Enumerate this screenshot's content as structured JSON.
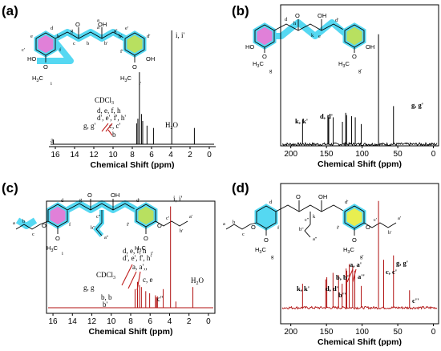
{
  "colors": {
    "highlight_cyan": "#55d8f2",
    "ring_magenta": "#e080d8",
    "ring_green": "#b8e060",
    "arrow_red": "#c0201f",
    "spectrum_a": "#000000",
    "spectrum_b": "#000000",
    "spectrum_c": "#b01010",
    "spectrum_d": "#b01010",
    "axis": "#000000"
  },
  "chart_data": [
    {
      "id": "a",
      "panel_label": "(a)",
      "type": "line",
      "xlabel": "Chemical Shift (ppm)",
      "x_ticks": [
        "16",
        "14",
        "12",
        "10",
        "8",
        "6",
        "4",
        "2",
        "0"
      ],
      "xlim": [
        16.5,
        -0.5
      ],
      "grid": false,
      "peaks": [
        {
          "ppm": 16.2,
          "height": 0.04
        },
        {
          "ppm": 7.55,
          "height": 0.18
        },
        {
          "ppm": 7.42,
          "height": 0.22
        },
        {
          "ppm": 7.26,
          "height": 0.62
        },
        {
          "ppm": 7.05,
          "height": 0.26
        },
        {
          "ppm": 6.92,
          "height": 0.2
        },
        {
          "ppm": 6.47,
          "height": 0.16
        },
        {
          "ppm": 5.8,
          "height": 0.14
        },
        {
          "ppm": 3.9,
          "height": 0.98
        },
        {
          "ppm": 1.55,
          "height": 0.14
        }
      ],
      "annotations": {
        "ii": "i, i'",
        "cdcl3": "CDCl",
        "cdcl3_sub": "3",
        "defh1": "d, e, f, h",
        "defh2": "d', e', f', h'",
        "cc": "c, c'",
        "gg": "g, g'",
        "b": "b",
        "h2o": "H",
        "h2o_sub": "2",
        "h2o_o": "O",
        "a": "a"
      }
    },
    {
      "id": "b",
      "panel_label": "(b)",
      "type": "line",
      "xlabel": "Chemical Shift (ppm)",
      "x_ticks": [
        "200",
        "150",
        "100",
        "50",
        "0"
      ],
      "xlim": [
        212,
        -5
      ],
      "grid": false,
      "peaks": [
        {
          "ppm": 183.5,
          "height": 0.22
        },
        {
          "ppm": 148.0,
          "height": 0.26
        },
        {
          "ppm": 146.8,
          "height": 0.24
        },
        {
          "ppm": 140.5,
          "height": 0.24
        },
        {
          "ppm": 127.6,
          "height": 0.2
        },
        {
          "ppm": 123.0,
          "height": 0.28
        },
        {
          "ppm": 121.8,
          "height": 0.26
        },
        {
          "ppm": 114.8,
          "height": 0.25
        },
        {
          "ppm": 109.6,
          "height": 0.24
        },
        {
          "ppm": 101.2,
          "height": 0.18
        },
        {
          "ppm": 77.0,
          "height": 0.98
        },
        {
          "ppm": 56.0,
          "height": 0.34
        }
      ],
      "annotations": {
        "kk": "k, k'",
        "dd": "d, d'",
        "gg": "g, g'"
      }
    },
    {
      "id": "c",
      "panel_label": "(c)",
      "type": "line",
      "xlabel": "Chemical Shift (ppm)",
      "x_ticks": [
        "16",
        "14",
        "12",
        "10",
        "8",
        "6",
        "4",
        "2",
        "0"
      ],
      "xlim": [
        16.5,
        -0.5
      ],
      "grid": false,
      "peaks": [
        {
          "ppm": 7.55,
          "height": 0.18
        },
        {
          "ppm": 7.3,
          "height": 0.25
        },
        {
          "ppm": 7.1,
          "height": 0.22
        },
        {
          "ppm": 6.9,
          "height": 0.2
        },
        {
          "ppm": 6.45,
          "height": 0.16
        },
        {
          "ppm": 6.05,
          "height": 0.14
        },
        {
          "ppm": 5.45,
          "height": 0.12
        },
        {
          "ppm": 5.35,
          "height": 0.1
        },
        {
          "ppm": 5.25,
          "height": 0.11
        },
        {
          "ppm": 4.65,
          "height": 0.18
        },
        {
          "ppm": 3.9,
          "height": 0.98
        },
        {
          "ppm": 3.35,
          "height": 0.06
        },
        {
          "ppm": 1.6,
          "height": 0.2
        }
      ],
      "annotations": {
        "ii": "i, i'",
        "defh1": "d, e, f, h",
        "defh2": "d', e', f', h'",
        "aa": "a, a',,",
        "cdcl3": "CDCl",
        "cdcl3_sub": "3",
        "ce": "c, e",
        "gg": "g, g",
        "bb": "b, b",
        "bq": "b'",
        "cpp": "c''",
        "h2o": "H",
        "h2o_sub": "2",
        "h2o_o": "O"
      }
    },
    {
      "id": "d",
      "panel_label": "(d)",
      "type": "line",
      "xlabel": "Chemical Shift (ppm)",
      "x_ticks": [
        "200",
        "150",
        "100",
        "50",
        "0"
      ],
      "xlim": [
        212,
        -5
      ],
      "grid": false,
      "peaks": [
        {
          "ppm": 183.5,
          "height": 0.22
        },
        {
          "ppm": 151.0,
          "height": 0.26
        },
        {
          "ppm": 149.5,
          "height": 0.28
        },
        {
          "ppm": 140.8,
          "height": 0.32
        },
        {
          "ppm": 133.0,
          "height": 0.3
        },
        {
          "ppm": 128.0,
          "height": 0.22
        },
        {
          "ppm": 122.4,
          "height": 0.36
        },
        {
          "ppm": 121.5,
          "height": 0.34
        },
        {
          "ppm": 118.0,
          "height": 0.4
        },
        {
          "ppm": 113.2,
          "height": 0.38
        },
        {
          "ppm": 110.2,
          "height": 0.34
        },
        {
          "ppm": 101.2,
          "height": 0.2
        },
        {
          "ppm": 77.0,
          "height": 0.98
        },
        {
          "ppm": 69.8,
          "height": 0.44
        },
        {
          "ppm": 56.0,
          "height": 0.48
        },
        {
          "ppm": 33.5,
          "height": 0.16
        }
      ],
      "annotations": {
        "kk": "k, k'",
        "dd": "d, d'",
        "bb": "b, b'",
        "bpp": "b''",
        "aa": "a, a'",
        "app": "a''",
        "ce": "c, c'",
        "gg": "g, g'",
        "cpp": "c''"
      }
    }
  ],
  "structures": {
    "a": {
      "letters": [
        "a",
        "b",
        "c",
        "d",
        "e",
        "f",
        "g",
        "h",
        "i",
        "a'",
        "b'",
        "c'",
        "d'",
        "e'",
        "f'",
        "g'",
        "h'",
        "i'"
      ],
      "atoms": {
        "o1": "O",
        "oh": "OH",
        "ho": "HO",
        "oh2": "OH",
        "o": "O",
        "o2": "O",
        "h3c": "H",
        "h3c_sub": "3",
        "h3c_c": "C",
        "h3c2": "H",
        "h3c2_sub": "3",
        "h3c2_c": "C"
      }
    },
    "b": {
      "letters": [
        "a",
        "b",
        "c",
        "d",
        "e",
        "f",
        "g",
        "h",
        "k",
        "a'",
        "b'",
        "c'",
        "d'",
        "e'",
        "f'",
        "g'",
        "h'"
      ],
      "atoms": {
        "o1": "O",
        "oh": "OH",
        "ho": "HO",
        "oh2": "OH",
        "o": "O",
        "o2": "O",
        "h3c": "H",
        "h3c_sub": "3",
        "h3c_c": "C",
        "h3c2": "H",
        "h3c2_sub": "3",
        "h3c2_c": "C"
      }
    },
    "c": {
      "letters": [
        "a",
        "b",
        "c",
        "d",
        "e",
        "f",
        "g",
        "h",
        "i",
        "a'",
        "b'",
        "c'",
        "d'",
        "e'",
        "f'",
        "g'",
        "h'",
        "i'",
        "a''",
        "b''",
        "c''"
      ],
      "atoms": {
        "o1": "O",
        "oh": "OH",
        "o": "O",
        "o2": "O",
        "o3": "O",
        "o4": "O",
        "h3c": "H",
        "h3c_sub": "3",
        "h3c_c": "C",
        "h3c2": "H",
        "h3c2_sub": "3",
        "h3c2_c": "C"
      }
    },
    "d": {
      "letters": [
        "a",
        "b",
        "c",
        "d",
        "e",
        "f",
        "g",
        "h",
        "k",
        "a'",
        "b'",
        "c'",
        "d'",
        "e'",
        "f'",
        "g'",
        "h'",
        "a''",
        "b''",
        "c''"
      ],
      "atoms": {
        "o1": "O",
        "oh": "OH",
        "o": "O",
        "o2": "O",
        "o3": "O",
        "o4": "O",
        "h3c": "H",
        "h3c_sub": "3",
        "h3c_c": "C",
        "h3c2": "H",
        "h3c2_sub": "3",
        "h3c2_c": "C"
      }
    }
  }
}
